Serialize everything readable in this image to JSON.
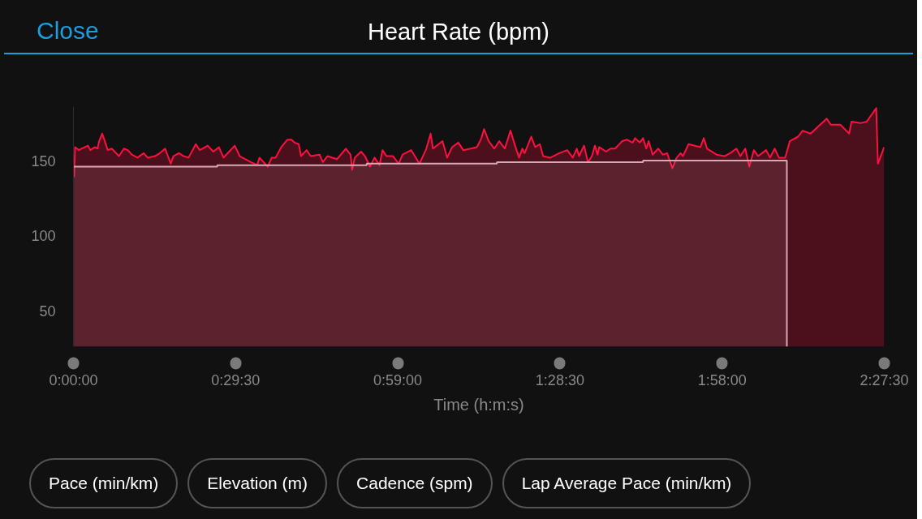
{
  "chart_data": {
    "type": "area",
    "title": "Heart Rate (bpm)",
    "xlabel": "Time (h:m:s)",
    "xlim": [
      0,
      2.45833
    ],
    "ylim": [
      26,
      186
    ],
    "xticks": [
      {
        "value": 0,
        "label": "0:00:00"
      },
      {
        "value": 0.49167,
        "label": "0:29:30"
      },
      {
        "value": 0.98333,
        "label": "0:59:00"
      },
      {
        "value": 1.475,
        "label": "1:28:30"
      },
      {
        "value": 1.96667,
        "label": "1:58:00"
      },
      {
        "value": 2.45833,
        "label": "2:27:30"
      }
    ],
    "yticks": [
      50,
      100,
      150
    ],
    "series": [
      {
        "type": "area",
        "color": "#ff1040",
        "x": [
          0.002,
          0.005,
          0.017,
          0.024,
          0.044,
          0.051,
          0.065,
          0.073,
          0.078,
          0.087,
          0.092,
          0.104,
          0.116,
          0.138,
          0.153,
          0.165,
          0.177,
          0.194,
          0.213,
          0.225,
          0.247,
          0.262,
          0.278,
          0.295,
          0.303,
          0.32,
          0.334,
          0.349,
          0.371,
          0.383,
          0.407,
          0.424,
          0.441,
          0.455,
          0.472,
          0.489,
          0.504,
          0.538,
          0.557,
          0.564,
          0.589,
          0.601,
          0.613,
          0.63,
          0.649,
          0.661,
          0.671,
          0.683,
          0.69,
          0.707,
          0.719,
          0.746,
          0.756,
          0.77,
          0.799,
          0.826,
          0.84,
          0.845,
          0.853,
          0.872,
          0.884,
          0.899,
          0.913,
          0.928,
          0.937,
          0.949,
          0.969,
          0.986,
          0.998,
          1.024,
          1.049,
          1.07,
          1.083,
          1.09,
          1.119,
          1.133,
          1.148,
          1.167,
          1.182,
          1.204,
          1.223,
          1.235,
          1.245,
          1.259,
          1.276,
          1.291,
          1.308,
          1.325,
          1.339,
          1.351,
          1.361,
          1.368,
          1.388,
          1.4,
          1.414,
          1.424,
          1.446,
          1.473,
          1.497,
          1.514,
          1.526,
          1.533,
          1.548,
          1.56,
          1.572,
          1.581,
          1.589,
          1.594,
          1.615,
          1.628,
          1.642,
          1.664,
          1.678,
          1.695,
          1.703,
          1.717,
          1.727,
          1.737,
          1.744,
          1.756,
          1.773,
          1.787,
          1.8,
          1.816,
          1.829,
          1.841,
          1.848,
          1.865,
          1.901,
          1.911,
          1.921,
          1.95,
          1.974,
          1.991,
          2.01,
          2.022,
          2.037,
          2.049,
          2.063,
          2.076,
          2.1,
          2.112,
          2.126,
          2.139,
          2.158,
          2.172,
          2.197,
          2.211,
          2.235,
          2.264,
          2.284,
          2.296,
          2.325,
          2.352,
          2.359,
          2.386,
          2.405,
          2.434,
          2.439,
          2.458
        ],
        "values": [
          139,
          159,
          157,
          158,
          160,
          157,
          159,
          158,
          163,
          168,
          165,
          157,
          158,
          153,
          158,
          157,
          154,
          152,
          155,
          152,
          153,
          155,
          158,
          148,
          153,
          155,
          153,
          152,
          161,
          157,
          160,
          156,
          159,
          152,
          156,
          160,
          153,
          149,
          147,
          152,
          146,
          152,
          152,
          159,
          164,
          164,
          162,
          161,
          153,
          157,
          153,
          154,
          149,
          153,
          151,
          158,
          154,
          144,
          152,
          156,
          153,
          146,
          152,
          147,
          157,
          153,
          153,
          148,
          154,
          157,
          148,
          158,
          168,
          158,
          163,
          152,
          159,
          162,
          157,
          158,
          159,
          164,
          171,
          163,
          158,
          163,
          158,
          170,
          160,
          152,
          158,
          155,
          166,
          159,
          161,
          153,
          152,
          155,
          157,
          152,
          158,
          153,
          160,
          149,
          153,
          160,
          154,
          159,
          156,
          158,
          158,
          163,
          164,
          162,
          165,
          162,
          165,
          158,
          163,
          154,
          158,
          154,
          155,
          145,
          152,
          155,
          153,
          161,
          159,
          165,
          158,
          154,
          153,
          155,
          158,
          153,
          158,
          146,
          157,
          153,
          157,
          152,
          158,
          152,
          152,
          163,
          166,
          170,
          168,
          174,
          178,
          174,
          174,
          168,
          176,
          175,
          176,
          185,
          148,
          159
        ]
      },
      {
        "type": "step",
        "color": "#d9a8b4",
        "x": [
          0,
          0.436,
          0.889,
          1.284,
          1.727,
          2.163
        ],
        "values": [
          146,
          147,
          148,
          149,
          150,
          26
        ]
      }
    ],
    "annotations": [
      "Close",
      "Pace (min/km)",
      "Elevation (m)",
      "Cadence (spm)",
      "Lap Average Pace (min/km)"
    ]
  }
}
